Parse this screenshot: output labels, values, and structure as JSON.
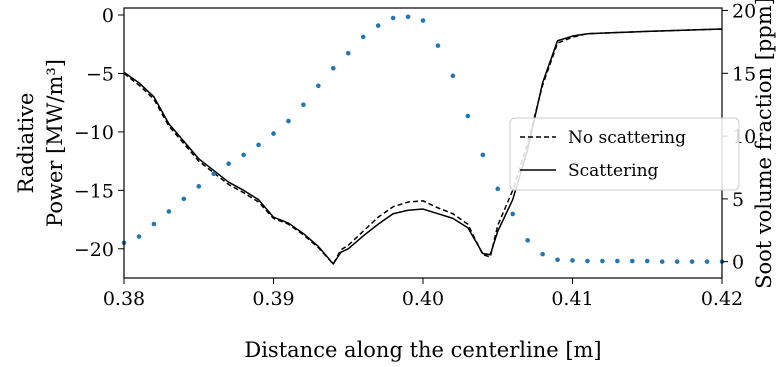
{
  "chart_data": {
    "type": "line",
    "xlabel": "Distance along the centerline [m]",
    "ylabel_left_line1": "Radiative",
    "ylabel_left_line2": "Power [MW/m³]",
    "ylabel_right": "Soot volume fraction [ppm]",
    "xlim": [
      0.38,
      0.42
    ],
    "ylim_left": [
      -22.5,
      0.6
    ],
    "ylim_right": [
      -1.3,
      20.2
    ],
    "x_ticks": [
      "0.38",
      "0.39",
      "0.40",
      "0.41",
      "0.42"
    ],
    "y_left_ticks": [
      "0",
      "−5",
      "−10",
      "−15",
      "−20"
    ],
    "y_right_ticks": [
      "0",
      "5",
      "10",
      "15",
      "20"
    ],
    "grid": false,
    "legend_position": "center-right",
    "series": [
      {
        "name": "No scattering",
        "axis": "left",
        "style": "dashed",
        "color": "#000000",
        "x": [
          0.38,
          0.381,
          0.382,
          0.383,
          0.384,
          0.385,
          0.386,
          0.387,
          0.388,
          0.389,
          0.39,
          0.391,
          0.392,
          0.393,
          0.394,
          0.3945,
          0.395,
          0.396,
          0.397,
          0.398,
          0.399,
          0.4,
          0.401,
          0.402,
          0.403,
          0.404,
          0.4045,
          0.405,
          0.406,
          0.407,
          0.408,
          0.409,
          0.41,
          0.411,
          0.413,
          0.415,
          0.42
        ],
        "y": [
          -5.0,
          -6.0,
          -7.2,
          -9.5,
          -11.0,
          -12.5,
          -13.5,
          -14.5,
          -15.2,
          -16.0,
          -17.4,
          -17.9,
          -18.8,
          -19.9,
          -21.3,
          -20.1,
          -19.7,
          -18.5,
          -17.3,
          -16.4,
          -16.0,
          -15.9,
          -16.5,
          -17.0,
          -17.9,
          -20.5,
          -20.7,
          -18.0,
          -15.0,
          -11.0,
          -6.0,
          -2.4,
          -1.9,
          -1.6,
          -1.5,
          -1.4,
          -1.2
        ]
      },
      {
        "name": "Scattering",
        "axis": "left",
        "style": "solid",
        "color": "#000000",
        "x": [
          0.38,
          0.381,
          0.382,
          0.383,
          0.384,
          0.385,
          0.386,
          0.387,
          0.388,
          0.389,
          0.39,
          0.391,
          0.392,
          0.393,
          0.394,
          0.3945,
          0.395,
          0.396,
          0.397,
          0.398,
          0.399,
          0.4,
          0.401,
          0.402,
          0.403,
          0.404,
          0.4045,
          0.405,
          0.406,
          0.407,
          0.408,
          0.409,
          0.41,
          0.411,
          0.413,
          0.415,
          0.42
        ],
        "y": [
          -4.9,
          -5.8,
          -7.0,
          -9.3,
          -10.8,
          -12.3,
          -13.3,
          -14.3,
          -15.0,
          -15.8,
          -17.3,
          -17.8,
          -18.7,
          -19.8,
          -21.3,
          -20.3,
          -20.0,
          -18.9,
          -17.9,
          -17.0,
          -16.7,
          -16.6,
          -17.0,
          -17.4,
          -18.2,
          -20.4,
          -20.5,
          -18.5,
          -15.8,
          -11.5,
          -5.8,
          -2.2,
          -1.8,
          -1.6,
          -1.5,
          -1.4,
          -1.2
        ]
      },
      {
        "name": "Soot volume fraction",
        "axis": "right",
        "style": "dotted",
        "color": "#1f77b4",
        "x": [
          0.38,
          0.381,
          0.382,
          0.383,
          0.384,
          0.385,
          0.386,
          0.387,
          0.388,
          0.389,
          0.39,
          0.391,
          0.392,
          0.393,
          0.394,
          0.395,
          0.396,
          0.397,
          0.398,
          0.399,
          0.4,
          0.401,
          0.402,
          0.403,
          0.404,
          0.405,
          0.406,
          0.407,
          0.408,
          0.409,
          0.41,
          0.411,
          0.412,
          0.413,
          0.414,
          0.415,
          0.416,
          0.417,
          0.418,
          0.419,
          0.42
        ],
        "y": [
          1.5,
          2.0,
          3.0,
          4.0,
          5.0,
          6.0,
          7.0,
          7.8,
          8.5,
          9.3,
          10.2,
          11.2,
          12.5,
          14.0,
          15.4,
          16.6,
          17.9,
          18.8,
          19.4,
          19.5,
          19.2,
          17.2,
          14.8,
          11.6,
          8.5,
          5.8,
          3.8,
          1.7,
          0.6,
          0.15,
          0.1,
          0.05,
          0.05,
          0.05,
          0.05,
          0.05,
          0.0,
          0.0,
          0.0,
          0.0,
          0.0
        ]
      }
    ]
  }
}
